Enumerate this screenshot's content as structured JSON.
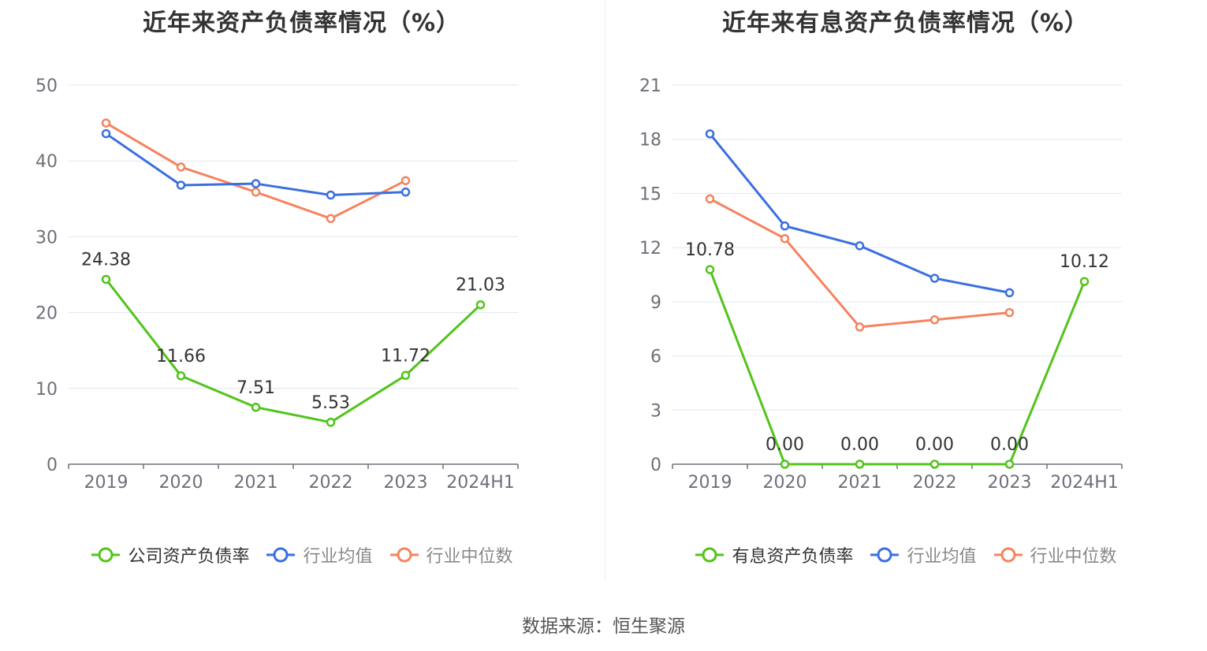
{
  "source_text": "数据来源：恒生聚源",
  "chart_data": [
    {
      "type": "line",
      "title": "近年来资产负债率情况（%）",
      "categories": [
        "2019",
        "2020",
        "2021",
        "2022",
        "2023",
        "2024H1"
      ],
      "ylim": [
        0,
        50
      ],
      "yticks": [
        "0",
        "10",
        "20",
        "30",
        "40",
        "50"
      ],
      "grid": true,
      "legend_position": "bottom",
      "series": [
        {
          "name": "公司资产负债率",
          "color": "#52c41a",
          "values": [
            24.38,
            11.66,
            7.51,
            5.53,
            11.72,
            21.03
          ],
          "labels": [
            "24.38",
            "11.66",
            "7.51",
            "5.53",
            "11.72",
            "21.03"
          ]
        },
        {
          "name": "行业均值",
          "color": "#3b6fe0",
          "values": [
            43.6,
            36.8,
            37.0,
            35.5,
            35.9,
            null
          ],
          "labels": []
        },
        {
          "name": "行业中位数",
          "color": "#f5835f",
          "values": [
            45.0,
            39.2,
            35.9,
            32.4,
            37.4,
            null
          ],
          "labels": []
        }
      ]
    },
    {
      "type": "line",
      "title": "近年来有息资产负债率情况（%）",
      "categories": [
        "2019",
        "2020",
        "2021",
        "2022",
        "2023",
        "2024H1"
      ],
      "ylim": [
        0,
        21
      ],
      "yticks": [
        "0",
        "3",
        "6",
        "9",
        "12",
        "15",
        "18",
        "21"
      ],
      "grid": true,
      "legend_position": "bottom",
      "series": [
        {
          "name": "有息资产负债率",
          "color": "#52c41a",
          "values": [
            10.78,
            0.0,
            0.0,
            0.0,
            0.0,
            10.12
          ],
          "labels": [
            "10.78",
            "0.00",
            "0.00",
            "0.00",
            "0.00",
            "10.12"
          ]
        },
        {
          "name": "行业均值",
          "color": "#3b6fe0",
          "values": [
            18.3,
            13.2,
            12.1,
            10.3,
            9.5,
            null
          ],
          "labels": []
        },
        {
          "name": "行业中位数",
          "color": "#f5835f",
          "values": [
            14.7,
            12.5,
            7.6,
            8.0,
            8.4,
            null
          ],
          "labels": []
        }
      ]
    }
  ]
}
